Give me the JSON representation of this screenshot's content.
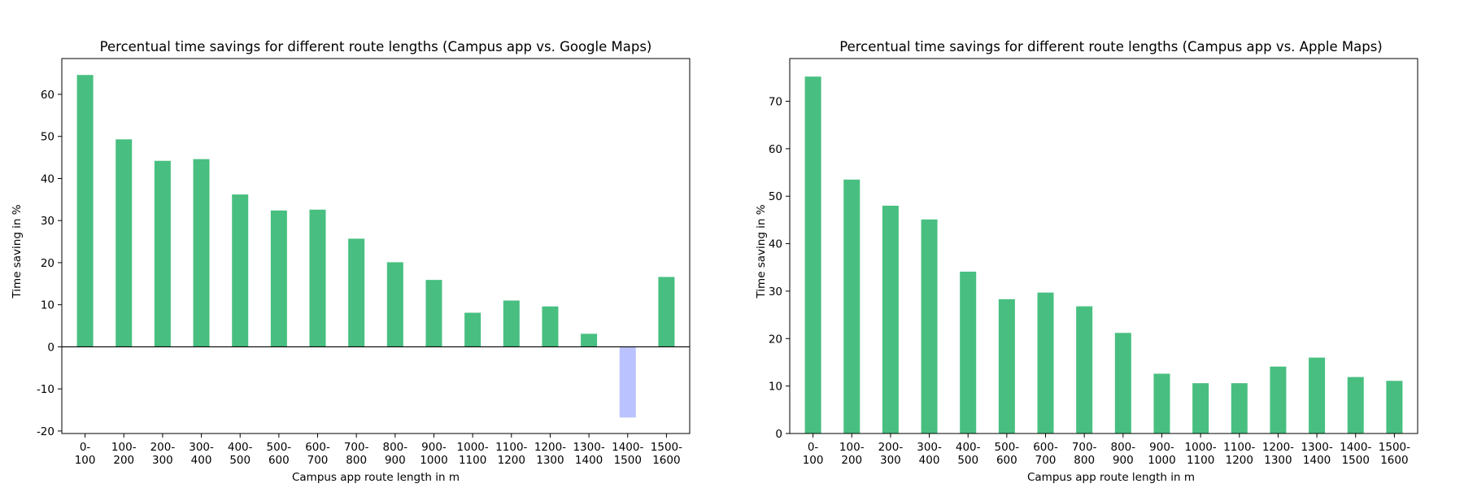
{
  "chart_data": [
    {
      "type": "bar",
      "title": "Percentual time savings for different route lengths (Campus app vs. Google Maps)",
      "xlabel": "Campus app route length in m",
      "ylabel": "Time saving in %",
      "ylim": [
        -20.6,
        68.5
      ],
      "yticks": [
        -20,
        -10,
        0,
        10,
        20,
        30,
        40,
        50,
        60
      ],
      "grid": false,
      "categories": [
        "0-\n100",
        "100-\n200",
        "200-\n300",
        "300-\n400",
        "400-\n500",
        "500-\n600",
        "600-\n700",
        "700-\n800",
        "800-\n900",
        "900-\n1000",
        "1000-\n1100",
        "1100-\n1200",
        "1200-\n1300",
        "1300-\n1400",
        "1400-\n1500",
        "1500-\n1600"
      ],
      "values": [
        64.6,
        49.3,
        44.2,
        44.6,
        36.2,
        32.4,
        32.6,
        25.7,
        20.1,
        15.9,
        8.1,
        11.0,
        9.6,
        3.1,
        -16.8,
        16.6
      ],
      "colors": {
        "positive": "#48bf80",
        "negative": "#bac2ff"
      }
    },
    {
      "type": "bar",
      "title": "Percentual time savings for different route lengths (Campus app vs. Apple Maps)",
      "xlabel": "Campus app route length in m",
      "ylabel": "Time saving in %",
      "ylim": [
        0,
        79
      ],
      "yticks": [
        0,
        10,
        20,
        30,
        40,
        50,
        60,
        70
      ],
      "grid": false,
      "categories": [
        "0-\n100",
        "100-\n200",
        "200-\n300",
        "300-\n400",
        "400-\n500",
        "500-\n600",
        "600-\n700",
        "700-\n800",
        "800-\n900",
        "900-\n1000",
        "1000-\n1100",
        "1100-\n1200",
        "1200-\n1300",
        "1300-\n1400",
        "1400-\n1500",
        "1500-\n1600"
      ],
      "values": [
        75.2,
        53.5,
        48.0,
        45.1,
        34.1,
        28.3,
        29.7,
        26.8,
        21.2,
        12.6,
        10.6,
        10.6,
        14.1,
        16.0,
        11.9,
        11.1
      ],
      "colors": {
        "positive": "#48bf80",
        "negative": "#bac2ff"
      }
    }
  ]
}
